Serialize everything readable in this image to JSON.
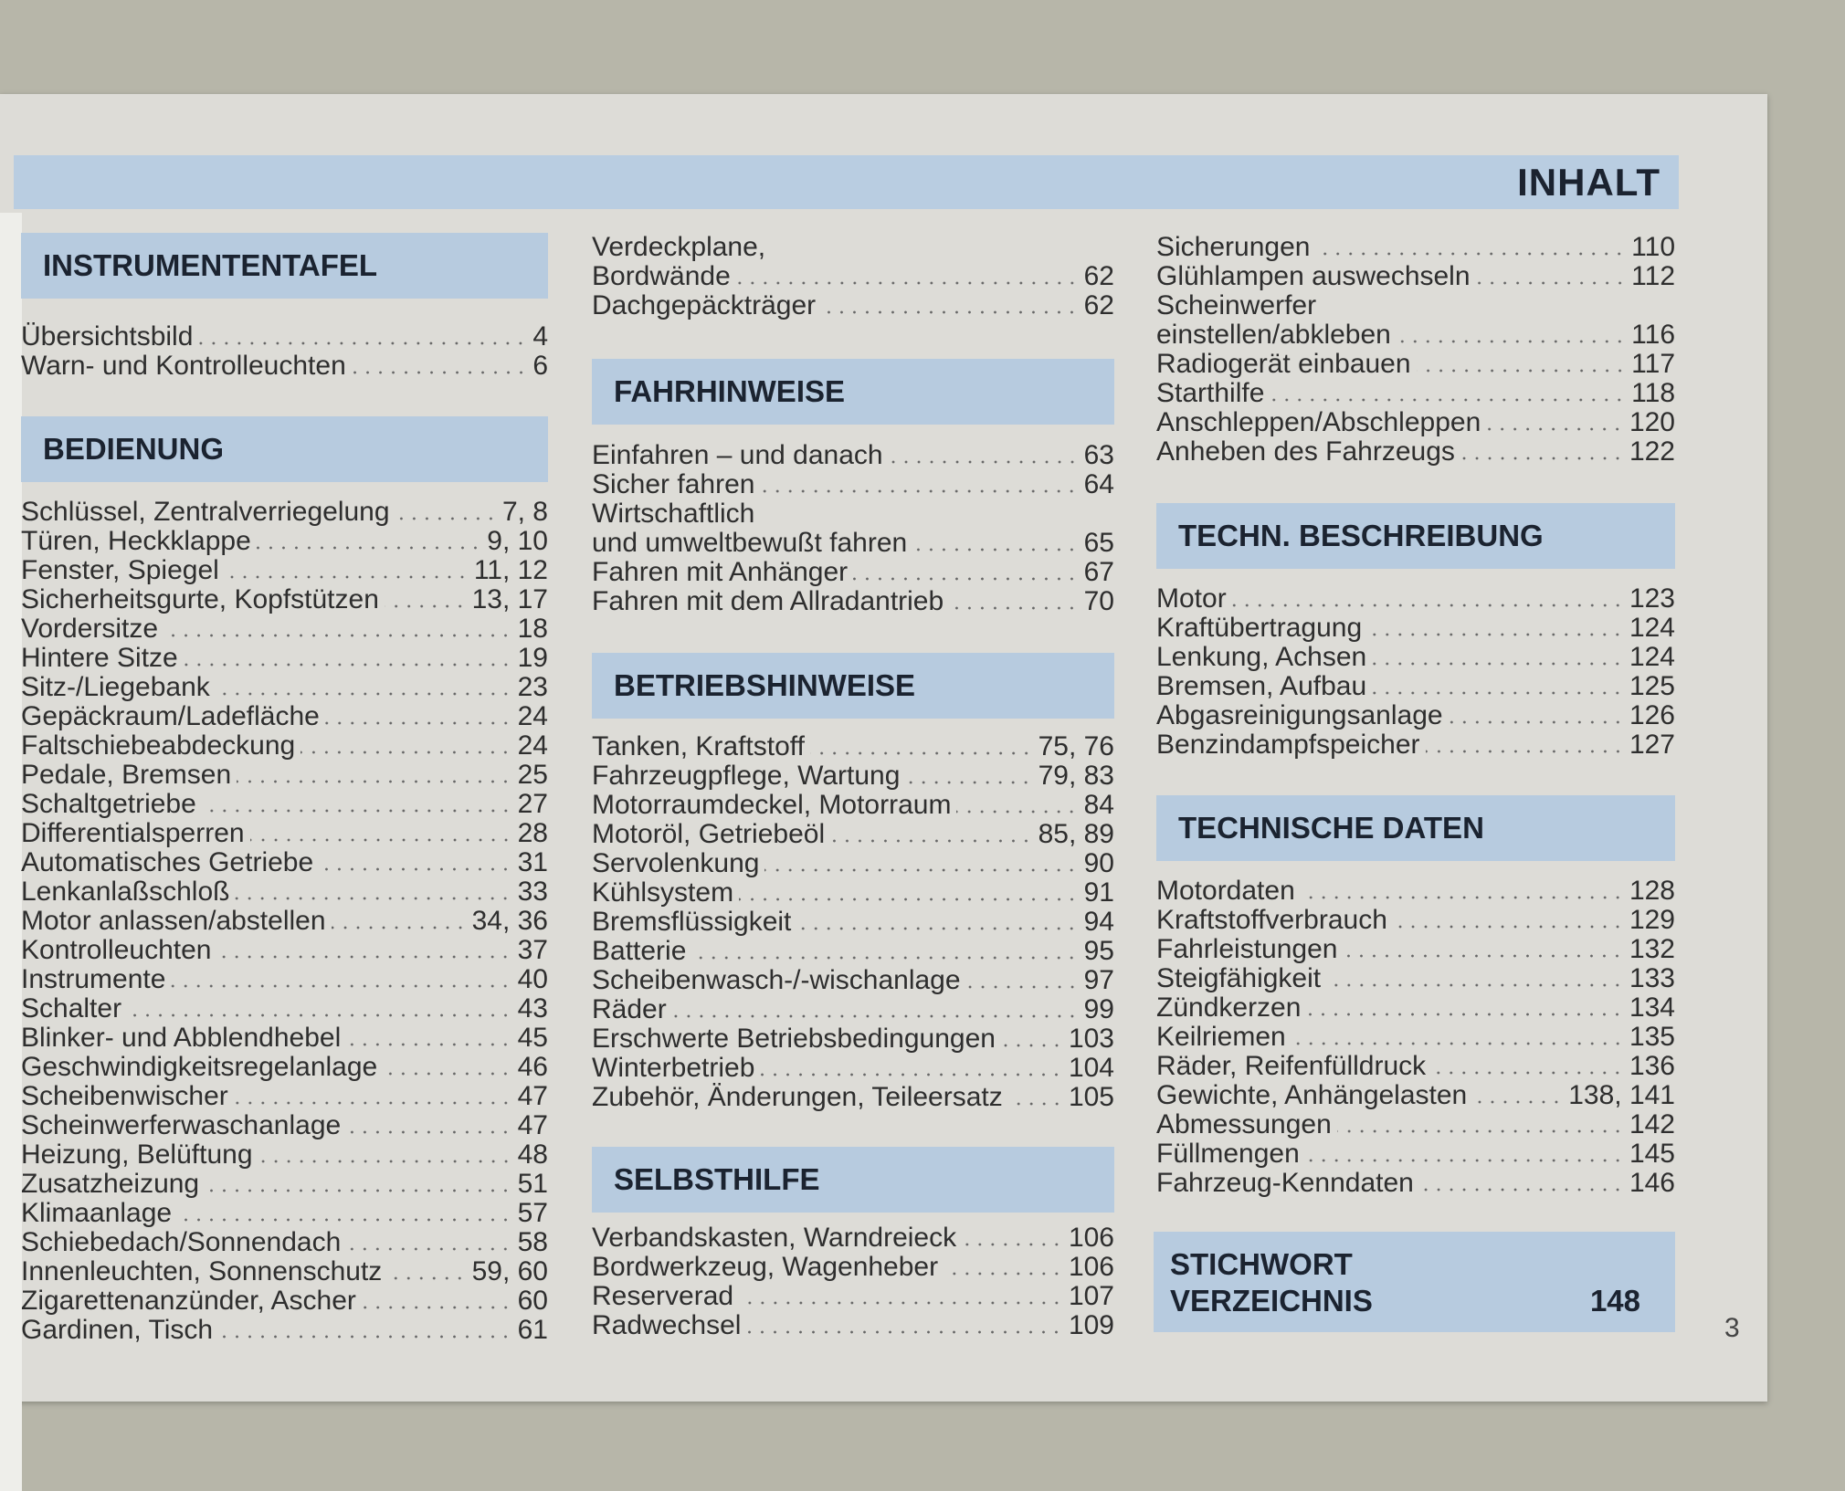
{
  "title": "INHALT",
  "columns": [
    {
      "sections": [
        {
          "header": "INSTRUMENTENTAFEL",
          "entries": [
            {
              "label": "Übersichtsbild",
              "page": "4"
            },
            {
              "label": "Warn- und Kontrolleuchten",
              "page": "6"
            }
          ]
        },
        {
          "header": "BEDIENUNG",
          "entries": [
            {
              "label": "Schlüssel, Zentralverriegelung",
              "page": "7, 8"
            },
            {
              "label": "Türen, Heckklappe",
              "page": "9, 10"
            },
            {
              "label": "Fenster, Spiegel",
              "page": "11, 12"
            },
            {
              "label": "Sicherheitsgurte, Kopfstützen",
              "page": "13, 17"
            },
            {
              "label": "Vordersitze",
              "page": "18"
            },
            {
              "label": "Hintere Sitze",
              "page": "19"
            },
            {
              "label": "Sitz-/Liegebank",
              "page": "23"
            },
            {
              "label": "Gepäckraum/Ladefläche",
              "page": "24"
            },
            {
              "label": "Faltschiebeabdeckung",
              "page": "24"
            },
            {
              "label": "Pedale, Bremsen",
              "page": "25"
            },
            {
              "label": "Schaltgetriebe",
              "page": "27"
            },
            {
              "label": "Differentialsperren",
              "page": "28"
            },
            {
              "label": "Automatisches Getriebe",
              "page": "31"
            },
            {
              "label": "Lenkanlaßschloß",
              "page": "33"
            },
            {
              "label": "Motor anlassen/abstellen",
              "page": "34, 36"
            },
            {
              "label": "Kontrolleuchten",
              "page": "37"
            },
            {
              "label": "Instrumente",
              "page": "40"
            },
            {
              "label": "Schalter",
              "page": "43"
            },
            {
              "label": "Blinker- und Abblendhebel",
              "page": "45"
            },
            {
              "label": "Geschwindigkeitsregelanlage",
              "page": "46"
            },
            {
              "label": "Scheibenwischer",
              "page": "47"
            },
            {
              "label": "Scheinwerferwaschanlage",
              "page": "47"
            },
            {
              "label": "Heizung, Belüftung",
              "page": "48"
            },
            {
              "label": "Zusatzheizung",
              "page": "51"
            },
            {
              "label": "Klimaanlage",
              "page": "57"
            },
            {
              "label": "Schiebedach/Sonnendach",
              "page": "58"
            },
            {
              "label": "Innenleuchten, Sonnenschutz",
              "page": "59, 60"
            },
            {
              "label": "Zigarettenanzünder, Ascher",
              "page": "60"
            },
            {
              "label": "Gardinen, Tisch",
              "page": "61"
            }
          ]
        }
      ]
    },
    {
      "sections": [
        {
          "header": "",
          "entries": [
            {
              "label": "Verdeckplane,",
              "page": ""
            },
            {
              "label": "Bordwände",
              "page": "62"
            },
            {
              "label": "Dachgepäckträger",
              "page": "62"
            }
          ]
        },
        {
          "header": "FAHRHINWEISE",
          "entries": [
            {
              "label": "Einfahren – und danach",
              "page": "63"
            },
            {
              "label": "Sicher fahren",
              "page": "64"
            },
            {
              "label": "Wirtschaftlich",
              "page": ""
            },
            {
              "label": "und umweltbewußt fahren",
              "page": "65"
            },
            {
              "label": "Fahren mit Anhänger",
              "page": "67"
            },
            {
              "label": "Fahren mit dem Allradantrieb",
              "page": "70"
            }
          ]
        },
        {
          "header": "BETRIEBSHINWEISE",
          "entries": [
            {
              "label": "Tanken, Kraftstoff",
              "page": "75, 76"
            },
            {
              "label": "Fahrzeugpflege, Wartung",
              "page": "79, 83"
            },
            {
              "label": "Motorraumdeckel, Motorraum",
              "page": "84"
            },
            {
              "label": "Motoröl, Getriebeöl",
              "page": "85, 89"
            },
            {
              "label": "Servolenkung",
              "page": "90"
            },
            {
              "label": "Kühlsystem",
              "page": "91"
            },
            {
              "label": "Bremsflüssigkeit",
              "page": "94"
            },
            {
              "label": "Batterie",
              "page": "95"
            },
            {
              "label": "Scheibenwasch-/-wischanlage",
              "page": "97"
            },
            {
              "label": "Räder",
              "page": "99"
            },
            {
              "label": "Erschwerte Betriebsbedingungen",
              "page": "103"
            },
            {
              "label": "Winterbetrieb",
              "page": "104"
            },
            {
              "label": "Zubehör, Änderungen, Teileersatz",
              "page": "105"
            }
          ]
        },
        {
          "header": "SELBSTHILFE",
          "entries": [
            {
              "label": "Verbandskasten, Warndreieck",
              "page": "106"
            },
            {
              "label": "Bordwerkzeug, Wagenheber",
              "page": "106"
            },
            {
              "label": "Reserverad",
              "page": "107"
            },
            {
              "label": "Radwechsel",
              "page": "109"
            }
          ]
        }
      ]
    },
    {
      "sections": [
        {
          "header": "",
          "entries": [
            {
              "label": "Sicherungen",
              "page": "110"
            },
            {
              "label": "Glühlampen auswechseln",
              "page": "112"
            },
            {
              "label": "Scheinwerfer",
              "page": ""
            },
            {
              "label": "einstellen/abkleben",
              "page": "116"
            },
            {
              "label": "Radiogerät einbauen",
              "page": "117"
            },
            {
              "label": "Starthilfe",
              "page": "118"
            },
            {
              "label": "Anschleppen/Abschleppen",
              "page": "120"
            },
            {
              "label": "Anheben des Fahrzeugs",
              "page": "122"
            }
          ]
        },
        {
          "header": "TECHN. BESCHREIBUNG",
          "entries": [
            {
              "label": "Motor",
              "page": "123"
            },
            {
              "label": "Kraftübertragung",
              "page": "124"
            },
            {
              "label": "Lenkung, Achsen",
              "page": "124"
            },
            {
              "label": "Bremsen, Aufbau",
              "page": "125"
            },
            {
              "label": "Abgasreinigungsanlage",
              "page": "126"
            },
            {
              "label": "Benzindampfspeicher",
              "page": "127"
            }
          ]
        },
        {
          "header": "TECHNISCHE DATEN",
          "entries": [
            {
              "label": "Motordaten",
              "page": "128"
            },
            {
              "label": "Kraftstoffverbrauch",
              "page": "129"
            },
            {
              "label": "Fahrleistungen",
              "page": "132"
            },
            {
              "label": "Steigfähigkeit",
              "page": "133"
            },
            {
              "label": "Zündkerzen",
              "page": "134"
            },
            {
              "label": "Keilriemen",
              "page": "135"
            },
            {
              "label": "Räder, Reifenfülldruck",
              "page": "136"
            },
            {
              "label": "Gewichte, Anhängelasten",
              "page": "138, 141"
            },
            {
              "label": "Abmessungen",
              "page": "142"
            },
            {
              "label": "Füllmengen",
              "page": "145"
            },
            {
              "label": "Fahrzeug-Kenndaten",
              "page": "146"
            }
          ]
        }
      ]
    }
  ],
  "index_box": {
    "line1": "STICHWORT",
    "line2": "VERZEICHNIS",
    "page": "148"
  },
  "page_number": "3",
  "colors": {
    "band": "#b9cde1",
    "paper": "#dddcd7",
    "text": "#2e2e2e",
    "heading": "#1b2330"
  }
}
